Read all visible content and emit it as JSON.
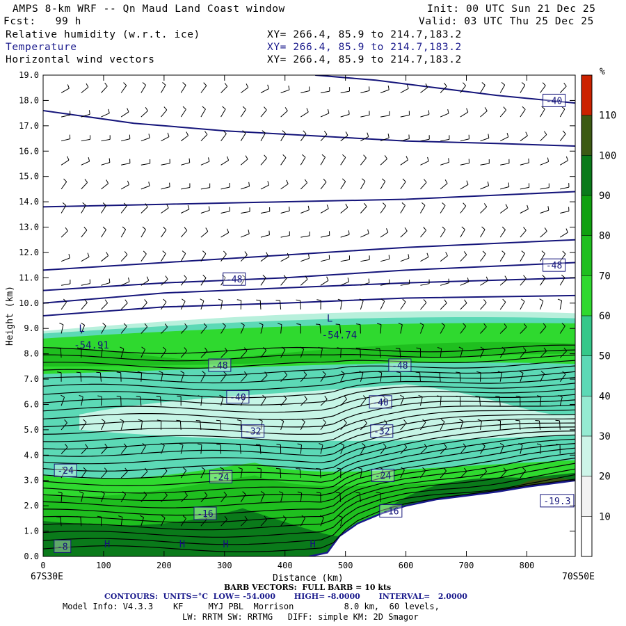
{
  "header": {
    "title": "AMPS 8-km WRF -- Qn Maud Land Coast window",
    "init": "Init: 00 UTC Sun 21 Dec 25",
    "fcst": "Fcst:   99 h",
    "valid": "Valid: 03 UTC Thu 25 Dec 25",
    "fields": [
      {
        "name": "Relative humidity (w.r.t. ice)",
        "xy": "XY= 266.4, 85.9 to 214.7,183.2",
        "color": "#000000"
      },
      {
        "name": "Temperature",
        "xy": "XY= 266.4, 85.9 to 214.7,183.2",
        "color": "#1a1a8c"
      },
      {
        "name": "Horizontal wind vectors",
        "xy": "XY= 266.4, 85.9 to 214.7,183.2",
        "color": "#000000"
      }
    ]
  },
  "footer": {
    "left_loc": "67S30E",
    "right_loc": "70S50E",
    "barb": "BARB VECTORS:  FULL BARB = 10 kts",
    "contours": "CONTOURS:  UNITS=°C  LOW= -54.000       HIGH= -8.0000       INTERVAL=   2.0000",
    "model1": "Model Info: V4.3.3    KF     MYJ PBL  Morrison          8.0 km,  60 levels,",
    "model2": "LW: RRTM SW: RRTMG   DIFF: simple KM: 2D Smagor"
  },
  "chart_data": {
    "type": "heatmap",
    "xlabel": "Distance (km)",
    "ylabel": "Height (km)",
    "xlim": [
      0,
      880
    ],
    "ylim": [
      0,
      19
    ],
    "x_ticks": [
      0,
      100,
      200,
      300,
      400,
      500,
      600,
      700,
      800
    ],
    "y_ticks": [
      "0.0",
      "1.0",
      "2.0",
      "3.0",
      "4.0",
      "5.0",
      "6.0",
      "7.0",
      "8.0",
      "9.0",
      "10.0",
      "11.0",
      "12.0",
      "13.0",
      "14.0",
      "15.0",
      "16.0",
      "17.0",
      "18.0",
      "19.0"
    ],
    "colorbar": {
      "unit": "%",
      "levels": [
        10,
        20,
        30,
        40,
        50,
        60,
        70,
        80,
        90,
        100,
        110
      ],
      "colors": [
        "#ffffff",
        "#f2f2f2",
        "#cdf5e8",
        "#95ebd2",
        "#5cd9b6",
        "#35c88a",
        "#2fd92f",
        "#1fbf1f",
        "#0fa00f",
        "#0a7a1a",
        "#3c5a14",
        "#cc2200"
      ]
    },
    "terrain": [
      [
        0,
        0
      ],
      [
        440,
        0
      ],
      [
        470,
        0.15
      ],
      [
        490,
        0.8
      ],
      [
        520,
        1.3
      ],
      [
        560,
        1.7
      ],
      [
        600,
        2.0
      ],
      [
        650,
        2.25
      ],
      [
        700,
        2.4
      ],
      [
        750,
        2.55
      ],
      [
        800,
        2.75
      ],
      [
        880,
        3.0
      ]
    ],
    "temperature_labels": [
      {
        "text": "-40",
        "x": 845,
        "y": 18.0
      },
      {
        "text": "-48",
        "x": 845,
        "y": 11.5
      },
      {
        "text": "-48",
        "x": 316,
        "y": 10.95
      },
      {
        "text": "-48",
        "x": 292,
        "y": 7.55
      },
      {
        "text": "-48",
        "x": 590,
        "y": 7.55
      },
      {
        "text": "-40",
        "x": 322,
        "y": 6.3
      },
      {
        "text": "-40",
        "x": 558,
        "y": 6.1
      },
      {
        "text": "-32",
        "x": 347,
        "y": 4.95
      },
      {
        "text": "-32",
        "x": 560,
        "y": 4.95
      },
      {
        "text": "-24",
        "x": 37,
        "y": 3.4
      },
      {
        "text": "-24",
        "x": 294,
        "y": 3.15
      },
      {
        "text": "-24",
        "x": 562,
        "y": 3.2
      },
      {
        "text": "-16",
        "x": 268,
        "y": 1.7
      },
      {
        "text": "-16",
        "x": 575,
        "y": 1.8
      },
      {
        "text": "-8",
        "x": 32,
        "y": 0.4
      },
      {
        "text": "-19.3",
        "x": 850,
        "y": 2.2
      }
    ],
    "extrema": [
      {
        "text": "L",
        "x": 64,
        "y": 9.0
      },
      {
        "text": "-54.91",
        "x": 80,
        "y": 8.35
      },
      {
        "text": "L",
        "x": 474,
        "y": 9.4
      },
      {
        "text": "-54.74",
        "x": 490,
        "y": 8.75
      },
      {
        "text": "H",
        "x": 106,
        "y": 0.5
      },
      {
        "text": "H",
        "x": 230,
        "y": 0.5
      },
      {
        "text": "H",
        "x": 302,
        "y": 0.5
      },
      {
        "text": "H",
        "x": 446,
        "y": 0.5
      }
    ],
    "upper_isotherms": [
      [
        [
          0,
          17.6
        ],
        [
          150,
          17.1
        ],
        [
          300,
          16.8
        ],
        [
          450,
          16.6
        ],
        [
          600,
          16.4
        ],
        [
          750,
          16.3
        ],
        [
          880,
          16.2
        ]
      ],
      [
        [
          450,
          19.0
        ],
        [
          550,
          18.8
        ],
        [
          650,
          18.5
        ],
        [
          750,
          18.2
        ],
        [
          880,
          17.9
        ]
      ],
      [
        [
          0,
          13.8
        ],
        [
          200,
          13.9
        ],
        [
          400,
          14.0
        ],
        [
          600,
          14.1
        ],
        [
          880,
          14.4
        ]
      ],
      [
        [
          0,
          11.3
        ],
        [
          200,
          11.6
        ],
        [
          400,
          11.9
        ],
        [
          600,
          12.2
        ],
        [
          880,
          12.5
        ]
      ],
      [
        [
          0,
          10.5
        ],
        [
          200,
          10.8
        ],
        [
          400,
          11.0
        ],
        [
          600,
          11.3
        ],
        [
          880,
          11.6
        ]
      ],
      [
        [
          0,
          10.0
        ],
        [
          200,
          10.4
        ],
        [
          400,
          10.6
        ],
        [
          600,
          10.8
        ],
        [
          880,
          11.0
        ]
      ],
      [
        [
          0,
          9.5
        ],
        [
          200,
          9.85
        ],
        [
          400,
          10.0
        ],
        [
          600,
          10.2
        ],
        [
          880,
          10.3
        ]
      ]
    ]
  }
}
